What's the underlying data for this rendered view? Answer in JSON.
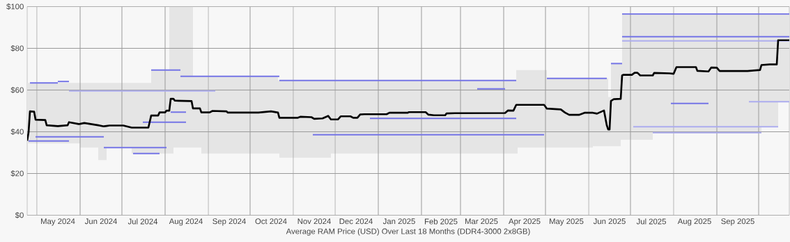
{
  "chart_data": {
    "type": "line",
    "xlabel": "Average RAM Price (USD) Over Last 18 Months (DDR4-3000 2x8GB)",
    "xlim": [
      "2024-04-24",
      "2025-10-23"
    ],
    "ylim": [
      0,
      100
    ],
    "yticks": [
      {
        "value": 0,
        "label": "$0"
      },
      {
        "value": 20,
        "label": "$20"
      },
      {
        "value": 40,
        "label": "$40"
      },
      {
        "value": 60,
        "label": "$60"
      },
      {
        "value": 80,
        "label": "$80"
      },
      {
        "value": 100,
        "label": "$100"
      }
    ],
    "xticks": [
      {
        "value": "2024-05-01",
        "label": null
      },
      {
        "value": "2024-06-01",
        "label": null
      },
      {
        "value": "2024-07-01",
        "label": null
      },
      {
        "value": "2024-08-01",
        "label": null
      },
      {
        "value": "2024-09-01",
        "label": null
      },
      {
        "value": "2024-10-01",
        "label": null
      },
      {
        "value": "2024-11-01",
        "label": null
      },
      {
        "value": "2024-12-01",
        "label": null
      },
      {
        "value": "2025-01-01",
        "label": null
      },
      {
        "value": "2025-02-01",
        "label": null
      },
      {
        "value": "2025-03-01",
        "label": null
      },
      {
        "value": "2025-04-01",
        "label": null
      },
      {
        "value": "2025-05-01",
        "label": null
      },
      {
        "value": "2025-06-01",
        "label": null
      },
      {
        "value": "2025-07-01",
        "label": null
      },
      {
        "value": "2025-08-01",
        "label": null
      },
      {
        "value": "2025-09-01",
        "label": null
      },
      {
        "value": "2025-10-01",
        "label": null
      },
      {
        "value": "2024-05-16",
        "label": "May 2024"
      },
      {
        "value": "2024-06-16",
        "label": "Jun 2024"
      },
      {
        "value": "2024-07-16",
        "label": "Jul 2024"
      },
      {
        "value": "2024-08-16",
        "label": "Aug 2024"
      },
      {
        "value": "2024-09-16",
        "label": "Sep 2024"
      },
      {
        "value": "2024-10-16",
        "label": "Oct 2024"
      },
      {
        "value": "2024-11-16",
        "label": "Nov 2024"
      },
      {
        "value": "2024-12-16",
        "label": "Dec 2024"
      },
      {
        "value": "2025-01-16",
        "label": "Jan 2025"
      },
      {
        "value": "2025-02-15",
        "label": "Feb 2025"
      },
      {
        "value": "2025-03-16",
        "label": "Mar 2025"
      },
      {
        "value": "2025-04-16",
        "label": "Apr 2025"
      },
      {
        "value": "2025-05-16",
        "label": "May 2025"
      },
      {
        "value": "2025-06-16",
        "label": "Jun 2025"
      },
      {
        "value": "2025-07-16",
        "label": "Jul 2025"
      },
      {
        "value": "2025-08-16",
        "label": "Aug 2025"
      },
      {
        "value": "2025-09-16",
        "label": "Sep 2025"
      }
    ],
    "grid": true,
    "series": [
      {
        "color": "#000000",
        "x": [
          "2024-04-24",
          "2024-04-25",
          "2024-04-26",
          "2024-04-29",
          "2024-04-30",
          "2024-05-07",
          "2024-05-08",
          "2024-05-16",
          "2024-05-23",
          "2024-05-24",
          "2024-05-31",
          "2024-06-01",
          "2024-06-04",
          "2024-06-14",
          "2024-06-18",
          "2024-06-20",
          "2024-06-22",
          "2024-07-02",
          "2024-07-08",
          "2024-07-09",
          "2024-07-20",
          "2024-07-22",
          "2024-07-27",
          "2024-07-28",
          "2024-08-01",
          "2024-08-02",
          "2024-08-04",
          "2024-08-05",
          "2024-08-07",
          "2024-08-08",
          "2024-08-20",
          "2024-08-21",
          "2024-08-26",
          "2024-08-27",
          "2024-09-02",
          "2024-09-04",
          "2024-09-14",
          "2024-09-15",
          "2024-10-07",
          "2024-10-16",
          "2024-10-21",
          "2024-10-22",
          "2024-11-04",
          "2024-11-06",
          "2024-11-14",
          "2024-11-16",
          "2024-11-22",
          "2024-11-26",
          "2024-11-28",
          "2024-12-03",
          "2024-12-05",
          "2024-12-12",
          "2024-12-14",
          "2024-12-17",
          "2024-12-19",
          "2024-12-22",
          "2025-01-07",
          "2025-01-09",
          "2025-01-22",
          "2025-01-23",
          "2025-02-04",
          "2025-02-06",
          "2025-02-10",
          "2025-02-18",
          "2025-02-19",
          "2025-02-25",
          "2025-04-02",
          "2025-04-04",
          "2025-04-08",
          "2025-04-10",
          "2025-04-11",
          "2025-04-30",
          "2025-05-02",
          "2025-05-12",
          "2025-05-15",
          "2025-05-18",
          "2025-05-25",
          "2025-05-29",
          "2025-06-04",
          "2025-06-07",
          "2025-06-12",
          "2025-06-14",
          "2025-06-15",
          "2025-06-16",
          "2025-06-17",
          "2025-06-19",
          "2025-06-24",
          "2025-06-25",
          "2025-06-26",
          "2025-07-02",
          "2025-07-04",
          "2025-07-06",
          "2025-07-08",
          "2025-07-16",
          "2025-07-17",
          "2025-07-18",
          "2025-07-29",
          "2025-08-01",
          "2025-08-03",
          "2025-08-17",
          "2025-08-18",
          "2025-08-26",
          "2025-08-28",
          "2025-09-01",
          "2025-09-03",
          "2025-09-23",
          "2025-10-02",
          "2025-10-03",
          "2025-10-09",
          "2025-10-14",
          "2025-10-15",
          "2025-10-23"
        ],
        "values": [
          35.7,
          39.8,
          49.8,
          49.6,
          45.8,
          45.6,
          43.1,
          42.7,
          43.1,
          44.6,
          43.7,
          43.8,
          44.2,
          43.1,
          42.6,
          42.8,
          43.0,
          43.0,
          42.0,
          42.0,
          42.0,
          47.8,
          47.8,
          49.3,
          49.3,
          50.1,
          50.1,
          55.8,
          55.8,
          54.9,
          54.7,
          51.2,
          51.2,
          49.3,
          49.3,
          50.0,
          49.8,
          49.2,
          49.2,
          49.8,
          49.2,
          46.7,
          46.7,
          47.2,
          47.0,
          46.2,
          46.4,
          47.6,
          45.9,
          45.9,
          47.4,
          47.4,
          46.7,
          46.7,
          48.3,
          48.4,
          48.4,
          49.1,
          49.1,
          49.4,
          49.4,
          48.2,
          47.9,
          47.9,
          48.8,
          48.9,
          49.0,
          50.2,
          50.1,
          52.9,
          52.9,
          52.9,
          51.1,
          50.7,
          49.2,
          48.1,
          48.1,
          49.1,
          49.1,
          48.7,
          50.2,
          43.1,
          41.1,
          41.1,
          54.8,
          55.6,
          55.8,
          67.0,
          67.3,
          67.3,
          68.3,
          68.3,
          67.0,
          67.0,
          67.0,
          68.2,
          68.0,
          67.8,
          71.0,
          71.0,
          69.2,
          68.9,
          70.8,
          70.7,
          69.1,
          69.1,
          69.6,
          72.0,
          72.3,
          72.3,
          83.9,
          83.9
        ],
        "lower": [
          34.4,
          34.4,
          34.4,
          34.4,
          34.4,
          34.4,
          34.4,
          34.4,
          34.4,
          34.4,
          34.4,
          32.4,
          32.4,
          26.4,
          26.4,
          32.4,
          32.4,
          32.4,
          29.6,
          29.6,
          29.6,
          29.6,
          29.6,
          29.6,
          29.6,
          29.6,
          29.6,
          29.6,
          32.4,
          32.4,
          32.4,
          32.4,
          32.4,
          29.6,
          29.6,
          29.6,
          29.6,
          29.6,
          29.6,
          29.6,
          29.6,
          27.6,
          27.6,
          27.6,
          27.6,
          27.6,
          27.6,
          27.6,
          29.6,
          29.6,
          29.6,
          29.6,
          29.6,
          29.6,
          29.6,
          29.6,
          29.6,
          29.6,
          29.6,
          29.6,
          29.6,
          29.6,
          29.6,
          29.6,
          29.6,
          29.6,
          29.6,
          29.6,
          29.6,
          29.6,
          32.4,
          32.4,
          32.4,
          32.4,
          32.4,
          32.4,
          32.4,
          32.4,
          33.1,
          33.1,
          33.1,
          33.1,
          33.1,
          33.1,
          33.1,
          33.1,
          36.2,
          36.2,
          36.2,
          36.2,
          36.2,
          36.2,
          36.2,
          36.2,
          39.2,
          39.2,
          39.2,
          39.2,
          39.2,
          39.2,
          39.2,
          39.2,
          39.2,
          39.2,
          39.2,
          39.2,
          39.2,
          42.2,
          42.2,
          42.2,
          54.4,
          54.4
        ],
        "upper": [
          63.4,
          63.4,
          63.4,
          63.4,
          63.4,
          63.4,
          63.4,
          63.4,
          63.4,
          63.4,
          63.4,
          63.4,
          63.4,
          63.4,
          63.4,
          63.4,
          63.4,
          63.4,
          63.4,
          63.4,
          63.4,
          69.6,
          69.6,
          69.6,
          69.6,
          69.6,
          100,
          100,
          100,
          100,
          100,
          66.7,
          66.7,
          66.7,
          66.7,
          66.7,
          66.7,
          66.7,
          66.7,
          66.7,
          64.7,
          64.7,
          64.7,
          64.7,
          64.7,
          64.7,
          64.7,
          64.7,
          64.7,
          64.7,
          64.7,
          64.7,
          64.7,
          64.7,
          64.7,
          64.7,
          64.7,
          64.7,
          64.7,
          64.7,
          64.7,
          64.7,
          64.7,
          64.7,
          64.7,
          64.7,
          64.7,
          64.7,
          64.7,
          69.6,
          69.6,
          69.6,
          65.7,
          65.7,
          65.7,
          65.7,
          65.7,
          65.7,
          65.7,
          65.7,
          65.7,
          65.7,
          56.7,
          56.7,
          72.8,
          72.8,
          72.8,
          96.7,
          96.7,
          96.7,
          96.7,
          96.7,
          96.7,
          96.7,
          96.7,
          96.7,
          96.7,
          96.7,
          96.7,
          96.7,
          96.7,
          96.7,
          96.7,
          96.7,
          96.7,
          96.7,
          96.7,
          96.7,
          96.7,
          96.7,
          96.7,
          96.7
        ]
      },
      {
        "color": "#7474e6",
        "x": [
          "2024-04-26",
          "2024-05-16"
        ],
        "values": [
          63.4,
          63.4
        ]
      },
      {
        "color": "#7474e6",
        "x": [
          "2024-05-16",
          "2024-05-24"
        ],
        "values": [
          64.1,
          64.1
        ]
      },
      {
        "color": "#7474e6",
        "x": [
          "2024-07-22",
          "2024-08-12"
        ],
        "values": [
          69.6,
          69.6
        ]
      },
      {
        "color": "#7474e6",
        "x": [
          "2024-08-12",
          "2024-10-22"
        ],
        "values": [
          66.6,
          66.6
        ]
      },
      {
        "color": "#7474e6",
        "x": [
          "2024-04-25",
          "2024-05-24"
        ],
        "values": [
          35.6,
          35.6
        ]
      },
      {
        "color": "#7474e6",
        "x": [
          "2024-04-30",
          "2024-06-18"
        ],
        "values": [
          37.6,
          37.6
        ]
      },
      {
        "color": "#acacee",
        "x": [
          "2024-05-24",
          "2024-09-06"
        ],
        "values": [
          59.6,
          59.6
        ]
      },
      {
        "color": "#7474e6",
        "x": [
          "2024-06-18",
          "2024-08-02"
        ],
        "values": [
          32.4,
          32.4
        ]
      },
      {
        "color": "#7474e6",
        "x": [
          "2024-07-09",
          "2024-07-28"
        ],
        "values": [
          29.6,
          29.6
        ]
      },
      {
        "color": "#7474e6",
        "x": [
          "2024-08-05",
          "2024-08-16"
        ],
        "values": [
          49.4,
          49.4
        ]
      },
      {
        "color": "#7474e6",
        "x": [
          "2024-07-16",
          "2024-08-16"
        ],
        "values": [
          44.6,
          44.6
        ]
      },
      {
        "color": "#7474e6",
        "x": [
          "2024-10-22",
          "2025-04-10"
        ],
        "values": [
          64.6,
          64.6
        ]
      },
      {
        "color": "#7474e6",
        "x": [
          "2024-11-15",
          "2025-04-30"
        ],
        "values": [
          38.6,
          38.6
        ]
      },
      {
        "color": "#7474e6",
        "x": [
          "2024-12-26",
          "2025-04-10"
        ],
        "values": [
          46.4,
          46.4
        ]
      },
      {
        "color": "#7474e6",
        "x": [
          "2025-03-13",
          "2025-04-02"
        ],
        "values": [
          60.6,
          60.6
        ]
      },
      {
        "color": "#7474e6",
        "x": [
          "2025-05-02",
          "2025-06-14"
        ],
        "values": [
          65.6,
          65.6
        ]
      },
      {
        "color": "#7474e6",
        "x": [
          "2025-06-17",
          "2025-06-25"
        ],
        "values": [
          72.7,
          72.7
        ]
      },
      {
        "color": "#7474e6",
        "x": [
          "2025-06-25",
          "2025-10-23"
        ],
        "values": [
          96.4,
          96.4
        ]
      },
      {
        "color": "#7474e6",
        "x": [
          "2025-06-25",
          "2025-10-23"
        ],
        "values": [
          85.6,
          85.6
        ]
      },
      {
        "color": "#acacee",
        "x": [
          "2025-06-25",
          "2025-10-23"
        ],
        "values": [
          83.6,
          83.6
        ]
      },
      {
        "color": "#7474e6",
        "x": [
          "2025-07-30",
          "2025-08-26"
        ],
        "values": [
          53.6,
          53.6
        ]
      },
      {
        "color": "#acacee",
        "x": [
          "2025-07-17",
          "2025-10-03"
        ],
        "values": [
          39.6,
          39.6
        ]
      },
      {
        "color": "#acacee",
        "x": [
          "2025-07-03",
          "2025-10-15"
        ],
        "values": [
          42.4,
          42.4
        ]
      },
      {
        "color": "#acacee",
        "x": [
          "2025-09-24",
          "2025-10-23"
        ],
        "values": [
          54.4,
          54.4
        ]
      }
    ]
  }
}
